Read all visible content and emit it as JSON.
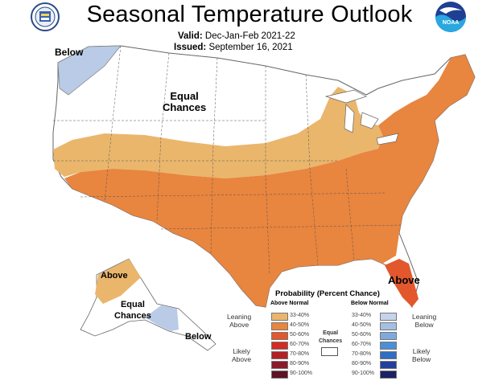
{
  "title": "Seasonal Temperature Outlook",
  "valid_label": "Valid:",
  "valid_value": "Dec-Jan-Feb 2021-22",
  "issued_label": "Issued:",
  "issued_value": "September 16, 2021",
  "logos": {
    "left": "doc-seal-icon",
    "right": "noaa-logo-icon"
  },
  "map_labels": {
    "below_nw": "Below",
    "equal_chances": "Equal\nChances",
    "above_fl": "Above",
    "above_ak": "Above",
    "equal_chances_ak": "Equal\nChances",
    "below_ak": "Below"
  },
  "colors": {
    "leaning_above": "#eab66c",
    "above_40_50": "#e8853f",
    "above_50_60": "#e2572c",
    "leaning_below": "#b9cbe6",
    "equal": "#ffffff"
  },
  "legend": {
    "title": "Probability (Percent Chance)",
    "above_header": "Above Normal",
    "below_header": "Below Normal",
    "leaning_above": "Leaning\nAbove",
    "likely_above": "Likely\nAbove",
    "leaning_below": "Leaning\nBelow",
    "likely_below": "Likely\nBelow",
    "equal_chances": "Equal\nChances",
    "above_bins": [
      {
        "label": "33-40%",
        "color": "#eab66c"
      },
      {
        "label": "40-50%",
        "color": "#e8853f"
      },
      {
        "label": "50-60%",
        "color": "#e2572c"
      },
      {
        "label": "60-70%",
        "color": "#d42b22"
      },
      {
        "label": "70-80%",
        "color": "#b32025"
      },
      {
        "label": "80-90%",
        "color": "#8b1a2a"
      },
      {
        "label": "90-100%",
        "color": "#5e1225"
      }
    ],
    "below_bins": [
      {
        "label": "33-40%",
        "color": "#c5d4ea"
      },
      {
        "label": "40-50%",
        "color": "#a3c0e3"
      },
      {
        "label": "50-60%",
        "color": "#7fa9dd"
      },
      {
        "label": "60-70%",
        "color": "#4d8fd6"
      },
      {
        "label": "70-80%",
        "color": "#2f6ec4"
      },
      {
        "label": "80-90%",
        "color": "#233f9c"
      },
      {
        "label": "90-100%",
        "color": "#1c2064"
      }
    ]
  }
}
